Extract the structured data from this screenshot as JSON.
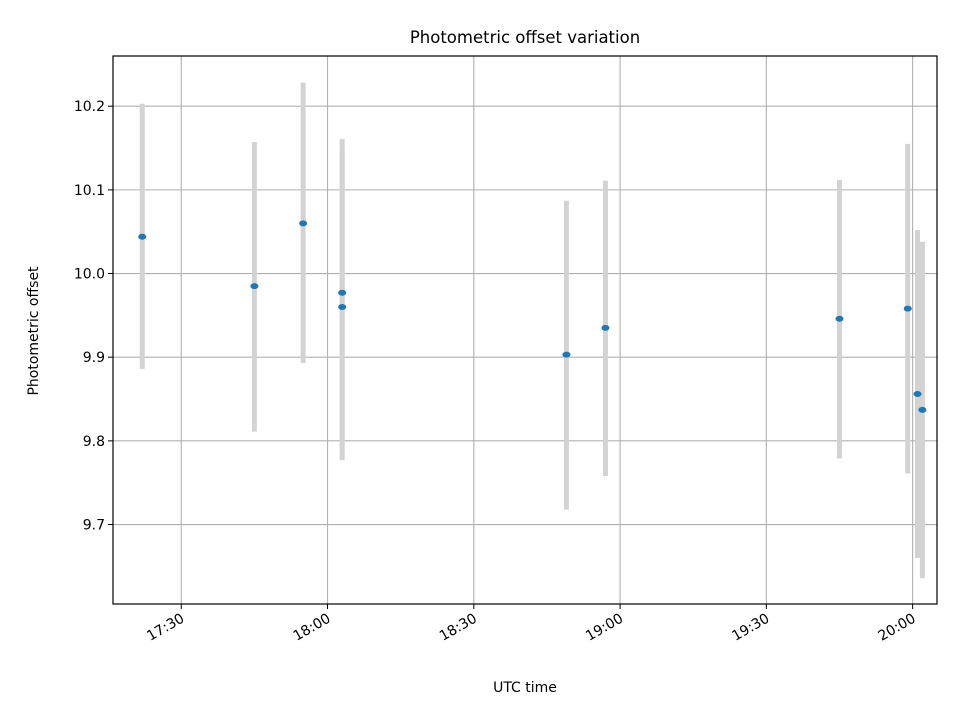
{
  "chart_data": {
    "type": "scatter",
    "title": "Photometric offset variation",
    "xlabel": "UTC time",
    "ylabel": "Photometric offset",
    "x_ticks": [
      "17:30",
      "18:00",
      "18:30",
      "19:00",
      "19:30",
      "20:00"
    ],
    "y_ticks": [
      "9.7",
      "9.8",
      "9.9",
      "10.0",
      "10.1",
      "10.2"
    ],
    "xlim": [
      "17:16",
      "20:05"
    ],
    "ylim": [
      9.605,
      10.26
    ],
    "grid": true,
    "legend": "none",
    "colors": {
      "point": "#1f77b4",
      "errorbar": "#d3d3d3",
      "grid": "#b0b0b0"
    },
    "points": [
      {
        "x": "17:22",
        "y": 10.044,
        "yerr_low": 9.886,
        "yerr_high": 10.203
      },
      {
        "x": "17:45",
        "y": 9.985,
        "yerr_low": 9.811,
        "yerr_high": 10.157
      },
      {
        "x": "17:55",
        "y": 10.06,
        "yerr_low": 9.893,
        "yerr_high": 10.228
      },
      {
        "x": "18:03",
        "y": 9.977,
        "yerr_low": 9.792,
        "yerr_high": 10.161
      },
      {
        "x": "18:03",
        "y": 9.96,
        "yerr_low": 9.777,
        "yerr_high": 10.144
      },
      {
        "x": "18:49",
        "y": 9.903,
        "yerr_low": 9.718,
        "yerr_high": 10.087
      },
      {
        "x": "18:57",
        "y": 9.935,
        "yerr_low": 9.758,
        "yerr_high": 10.111
      },
      {
        "x": "19:45",
        "y": 9.946,
        "yerr_low": 9.779,
        "yerr_high": 10.112
      },
      {
        "x": "19:59",
        "y": 9.958,
        "yerr_low": 9.761,
        "yerr_high": 10.155
      },
      {
        "x": "20:01",
        "y": 9.856,
        "yerr_low": 9.66,
        "yerr_high": 10.052
      },
      {
        "x": "20:02",
        "y": 9.837,
        "yerr_low": 9.636,
        "yerr_high": 10.038
      }
    ]
  }
}
